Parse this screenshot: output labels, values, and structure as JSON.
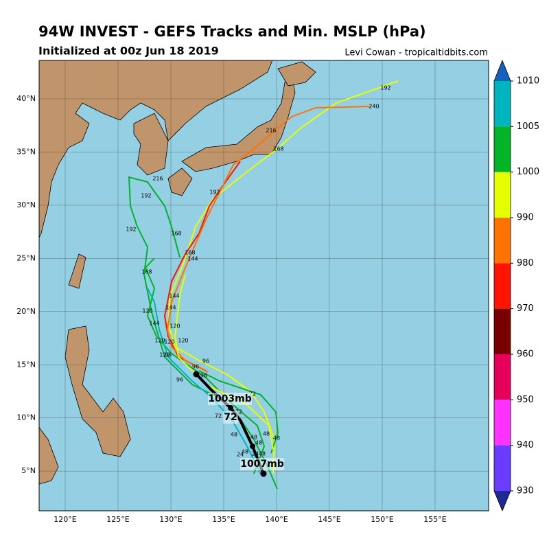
{
  "header": {
    "title": "94W INVEST - GEFS Tracks and Min. MSLP (hPa)",
    "subtitle": "Initialized at 00z Jun 18 2019",
    "credit": "Levi Cowan - tropicaltidbits.com"
  },
  "axes": {
    "lat_ticks": [
      {
        "value": 5,
        "label": "5°N"
      },
      {
        "value": 10,
        "label": "10°N"
      },
      {
        "value": 15,
        "label": "15°N"
      },
      {
        "value": 20,
        "label": "20°N"
      },
      {
        "value": 25,
        "label": "25°N"
      },
      {
        "value": 30,
        "label": "30°N"
      },
      {
        "value": 35,
        "label": "35°N"
      },
      {
        "value": 40,
        "label": "40°N"
      }
    ],
    "lon_ticks": [
      {
        "value": 120,
        "label": "120°E"
      },
      {
        "value": 125,
        "label": "125°E"
      },
      {
        "value": 130,
        "label": "130°E"
      },
      {
        "value": 135,
        "label": "135°E"
      },
      {
        "value": 140,
        "label": "140°E"
      },
      {
        "value": 145,
        "label": "145°E"
      },
      {
        "value": 150,
        "label": "150°E"
      },
      {
        "value": 155,
        "label": "155°E"
      }
    ]
  },
  "colorbar": {
    "ticks": [
      1010,
      1005,
      1000,
      990,
      980,
      970,
      960,
      950,
      940,
      930
    ],
    "colors": [
      "#1560bd",
      "#00b4c0",
      "#00b428",
      "#e6ff00",
      "#ff7300",
      "#ff1400",
      "#780000",
      "#e6005a",
      "#ff32ff",
      "#6a3cff",
      "#1e2896"
    ]
  },
  "track_labels": [
    "192",
    "240",
    "216",
    "168",
    "192",
    "216",
    "192",
    "192",
    "168",
    "168",
    "144",
    "168",
    "144",
    "144",
    "120",
    "144",
    "120",
    "120",
    "120",
    "120",
    "120",
    "96",
    "96",
    "96",
    "96",
    "96",
    "72",
    "72",
    "72",
    "48",
    "48",
    "48",
    "48",
    "48",
    "24",
    "48",
    "48",
    "24"
  ],
  "annotations": {
    "mean_pressure_1": "1003mb",
    "hour": "72",
    "mean_pressure_2": "1007mb"
  }
}
